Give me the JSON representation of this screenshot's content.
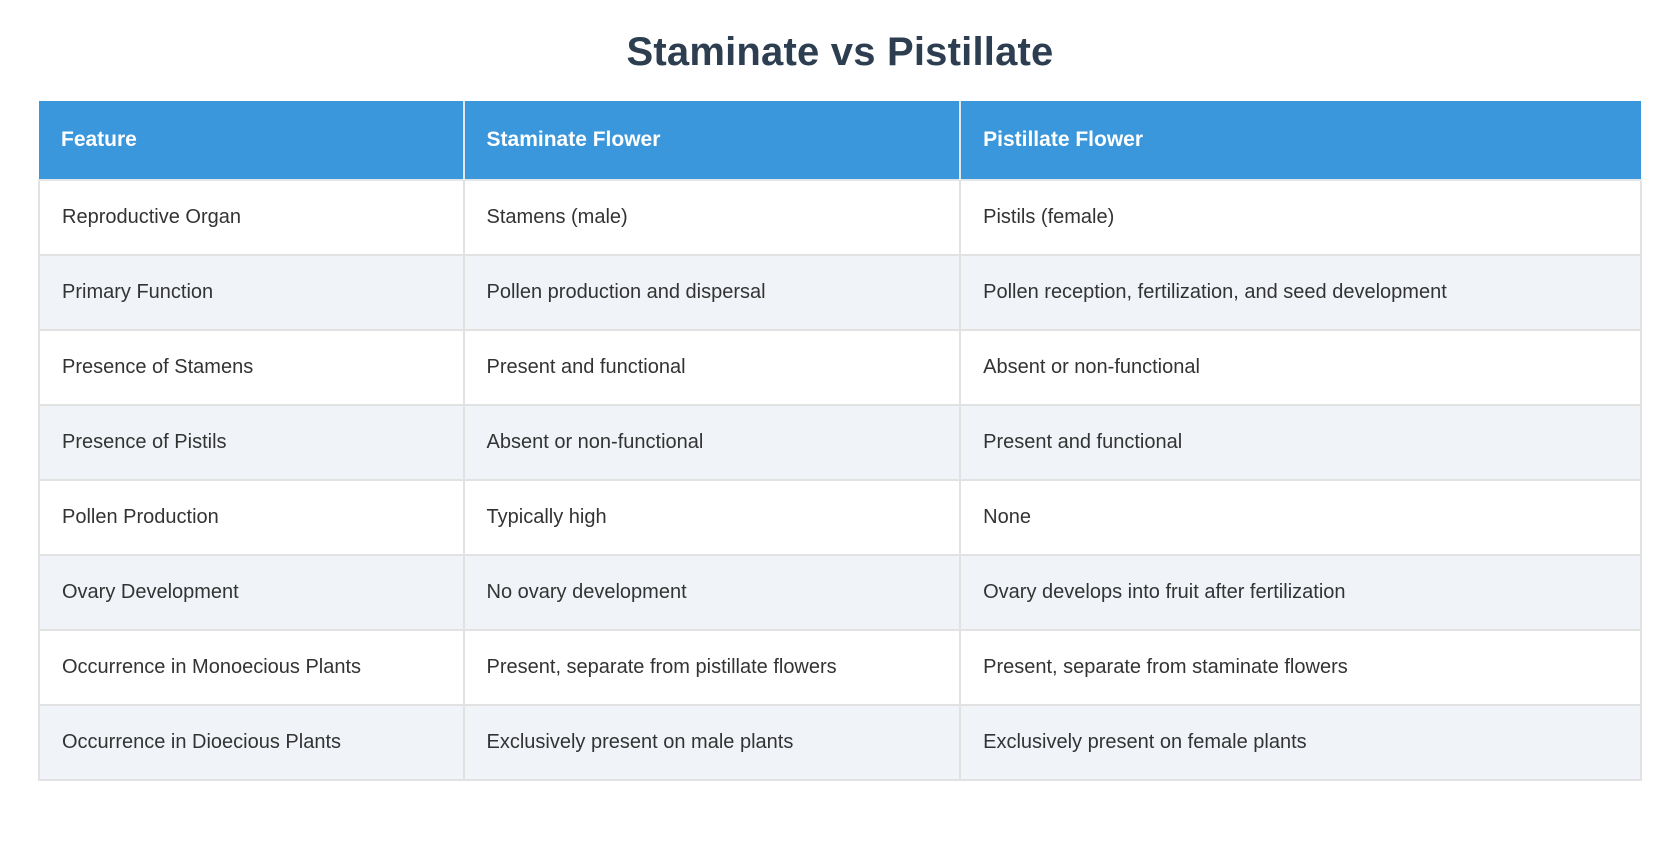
{
  "page": {
    "title": "Staminate vs Pistillate"
  },
  "colors": {
    "header_bg": "#3b97db",
    "header_text": "#ffffff",
    "row_bg": "#ffffff",
    "row_alt_bg": "#f0f4f8",
    "cell_border": "#e2e2e2",
    "title_text": "#2c3e50",
    "body_text": "#333333"
  },
  "table": {
    "columns": [
      "Feature",
      "Staminate Flower",
      "Pistillate Flower"
    ],
    "rows": [
      [
        "Reproductive Organ",
        "Stamens (male)",
        "Pistils (female)"
      ],
      [
        "Primary Function",
        "Pollen production and dispersal",
        "Pollen reception, fertilization, and seed development"
      ],
      [
        "Presence of Stamens",
        "Present and functional",
        "Absent or non-functional"
      ],
      [
        "Presence of Pistils",
        "Absent or non-functional",
        "Present and functional"
      ],
      [
        "Pollen Production",
        "Typically high",
        "None"
      ],
      [
        "Ovary Development",
        "No ovary development",
        "Ovary develops into fruit after fertilization"
      ],
      [
        "Occurrence in Monoecious Plants",
        "Present, separate from pistillate flowers",
        "Present, separate from staminate flowers"
      ],
      [
        "Occurrence in Dioecious Plants",
        "Exclusively present on male plants",
        "Exclusively present on female plants"
      ]
    ]
  }
}
